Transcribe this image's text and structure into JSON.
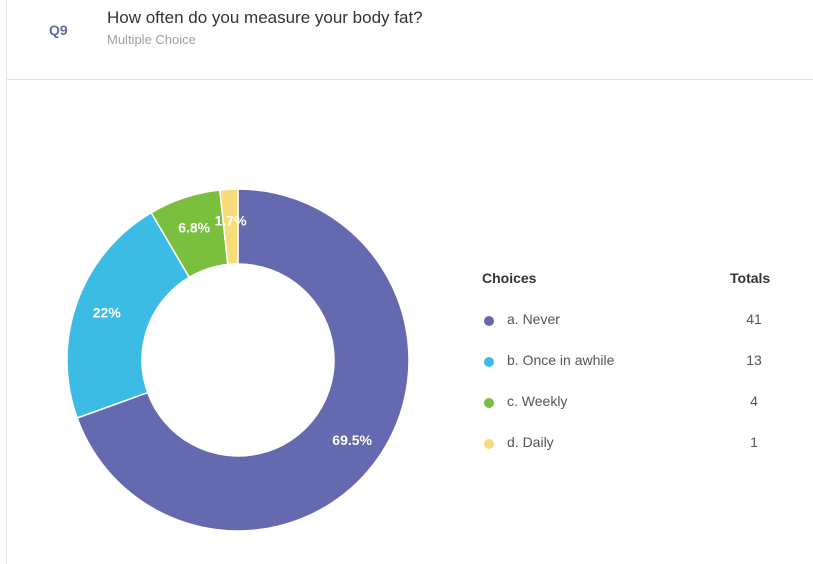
{
  "question": {
    "number": "Q9",
    "title": "How often do you measure your body fat?",
    "type": "Multiple Choice"
  },
  "legend": {
    "choices_header": "Choices",
    "totals_header": "Totals"
  },
  "chart_data": {
    "type": "pie",
    "donut": true,
    "categories": [
      "a. Never",
      "b. Once in awhile",
      "c. Weekly",
      "d. Daily"
    ],
    "values": [
      41,
      13,
      4,
      1
    ],
    "percent_labels": [
      "69.5%",
      "22%",
      "6.8%",
      "1.7%"
    ],
    "colors": [
      "#6469b0",
      "#3cbbe4",
      "#7bbf3f",
      "#f9dc7a"
    ]
  }
}
